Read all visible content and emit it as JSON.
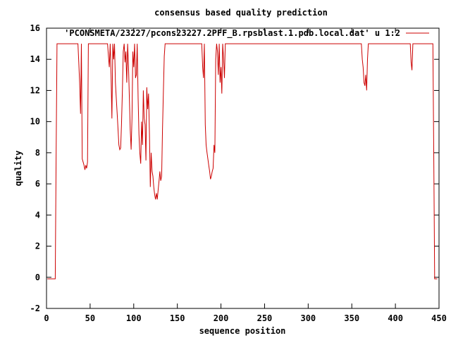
{
  "chart_data": {
    "type": "line",
    "title": "consensus based quality prediction",
    "xlabel": "sequence position",
    "ylabel": "quality",
    "xlim": [
      0,
      450
    ],
    "ylim": [
      -2,
      16
    ],
    "xticks": [
      "0",
      "50",
      "100",
      "150",
      "200",
      "250",
      "300",
      "350",
      "400",
      "450"
    ],
    "yticks": [
      "-2",
      "0",
      "2",
      "4",
      "6",
      "8",
      "10",
      "12",
      "14",
      "16"
    ],
    "grid": false,
    "legend_position": "top-right",
    "series": [
      {
        "name": "'PCONSMETA/23227/pcons23227.2PFF_B.rpsblast.1.pdb.local.dat' u 1:2",
        "color": "#cc0000",
        "points": [
          [
            1,
            -0.1
          ],
          [
            10,
            -0.1
          ],
          [
            11,
            7.5
          ],
          [
            12,
            15
          ],
          [
            36,
            15
          ],
          [
            37,
            13.8
          ],
          [
            38,
            12.5
          ],
          [
            39,
            10.5
          ],
          [
            40,
            15
          ],
          [
            41,
            7.6
          ],
          [
            42,
            7.4
          ],
          [
            43,
            7.2
          ],
          [
            44,
            6.9
          ],
          [
            45,
            7.2
          ],
          [
            46,
            7.0
          ],
          [
            47,
            7.4
          ],
          [
            48,
            15
          ],
          [
            70,
            15
          ],
          [
            71,
            14.2
          ],
          [
            72,
            13.5
          ],
          [
            73,
            15
          ],
          [
            74,
            13.0
          ],
          [
            75,
            10.2
          ],
          [
            76,
            15
          ],
          [
            77,
            14.0
          ],
          [
            78,
            15
          ],
          [
            79,
            12.5
          ],
          [
            80,
            11.5
          ],
          [
            81,
            10.5
          ],
          [
            82,
            9.5
          ],
          [
            83,
            8.5
          ],
          [
            84,
            8.2
          ],
          [
            85,
            8.3
          ],
          [
            86,
            9.8
          ],
          [
            87,
            12.0
          ],
          [
            88,
            14.5
          ],
          [
            89,
            15
          ],
          [
            90,
            13.8
          ],
          [
            91,
            14.5
          ],
          [
            92,
            12.5
          ],
          [
            93,
            15
          ],
          [
            94,
            13.5
          ],
          [
            95,
            11.5
          ],
          [
            96,
            9.5
          ],
          [
            97,
            8.2
          ],
          [
            98,
            10.2
          ],
          [
            99,
            14.5
          ],
          [
            100,
            13.5
          ],
          [
            101,
            15
          ],
          [
            102,
            12.8
          ],
          [
            103,
            13.0
          ],
          [
            104,
            15
          ],
          [
            105,
            11.5
          ],
          [
            106,
            9.2
          ],
          [
            107,
            8.0
          ],
          [
            108,
            7.3
          ],
          [
            109,
            10.0
          ],
          [
            110,
            8.5
          ],
          [
            111,
            12.0
          ],
          [
            112,
            10.2
          ],
          [
            113,
            9.8
          ],
          [
            114,
            7.5
          ],
          [
            115,
            12.2
          ],
          [
            116,
            10.8
          ],
          [
            117,
            11.8
          ],
          [
            118,
            9.2
          ],
          [
            119,
            5.8
          ],
          [
            120,
            8.0
          ],
          [
            121,
            6.8
          ],
          [
            122,
            6.5
          ],
          [
            123,
            5.8
          ],
          [
            124,
            5.3
          ],
          [
            125,
            5.0
          ],
          [
            126,
            5.4
          ],
          [
            127,
            5.0
          ],
          [
            128,
            5.6
          ],
          [
            129,
            6.2
          ],
          [
            130,
            6.8
          ],
          [
            131,
            6.2
          ],
          [
            132,
            6.5
          ],
          [
            133,
            9.5
          ],
          [
            134,
            12.0
          ],
          [
            135,
            14.2
          ],
          [
            136,
            15
          ],
          [
            178,
            15
          ],
          [
            179,
            13.5
          ],
          [
            180,
            12.8
          ],
          [
            181,
            15
          ],
          [
            182,
            9.8
          ],
          [
            183,
            8.5
          ],
          [
            184,
            8.0
          ],
          [
            185,
            7.6
          ],
          [
            186,
            7.2
          ],
          [
            187,
            6.8
          ],
          [
            188,
            6.3
          ],
          [
            189,
            6.5
          ],
          [
            190,
            6.8
          ],
          [
            191,
            7.0
          ],
          [
            192,
            8.5
          ],
          [
            193,
            8.0
          ],
          [
            194,
            14.0
          ],
          [
            195,
            15
          ],
          [
            196,
            14.5
          ],
          [
            197,
            13.0
          ],
          [
            198,
            15
          ],
          [
            199,
            12.5
          ],
          [
            200,
            13.5
          ],
          [
            201,
            11.8
          ],
          [
            202,
            15
          ],
          [
            203,
            14.0
          ],
          [
            204,
            12.8
          ],
          [
            205,
            15
          ],
          [
            361,
            15
          ],
          [
            362,
            14.0
          ],
          [
            363,
            13.5
          ],
          [
            364,
            12.5
          ],
          [
            365,
            12.3
          ],
          [
            366,
            13.0
          ],
          [
            367,
            12.0
          ],
          [
            368,
            14.0
          ],
          [
            369,
            15
          ],
          [
            417,
            15
          ],
          [
            418,
            13.8
          ],
          [
            419,
            13.3
          ],
          [
            420,
            15
          ],
          [
            443,
            15
          ],
          [
            444,
            7.5
          ],
          [
            445,
            -0.1
          ],
          [
            448,
            -0.1
          ]
        ]
      }
    ]
  }
}
